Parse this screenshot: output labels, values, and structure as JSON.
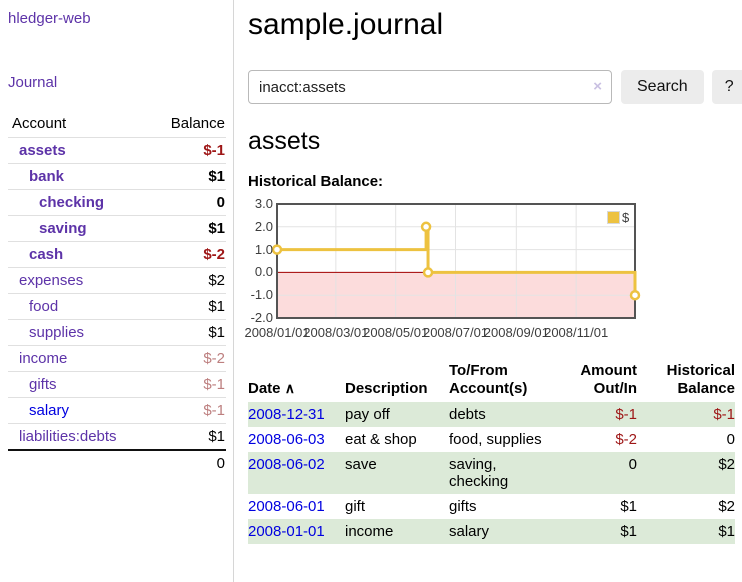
{
  "sidebar": {
    "brand": "hledger-web",
    "nav": {
      "journal": "Journal"
    },
    "table_header": {
      "account": "Account",
      "balance": "Balance"
    },
    "accounts": [
      {
        "name": "assets",
        "balance": "$-1",
        "level": 1,
        "bold": true
      },
      {
        "name": "bank",
        "balance": "$1",
        "level": 2,
        "bold": true
      },
      {
        "name": "checking",
        "balance": "0",
        "level": 3,
        "bold": true
      },
      {
        "name": "saving",
        "balance": "$1",
        "level": 3,
        "bold": true
      },
      {
        "name": "cash",
        "balance": "$-2",
        "level": 2,
        "bold": true
      },
      {
        "name": "expenses",
        "balance": "$2",
        "level": 1,
        "bold": false
      },
      {
        "name": "food",
        "balance": "$1",
        "level": 2,
        "bold": false
      },
      {
        "name": "supplies",
        "balance": "$1",
        "level": 2,
        "bold": false
      },
      {
        "name": "income",
        "balance": "$-2",
        "level": 1,
        "bold": false
      },
      {
        "name": "gifts",
        "balance": "$-1",
        "level": 2,
        "bold": false
      },
      {
        "name": "salary",
        "balance": "$-1",
        "level": 2,
        "bold": false,
        "unvisited": true
      },
      {
        "name": "liabilities:debts",
        "balance": "$1",
        "level": 1,
        "bold": false
      }
    ],
    "total": "0"
  },
  "main": {
    "title": "sample.journal",
    "search": {
      "value": "inacct:assets",
      "clear_icon": "×",
      "search_button": "Search",
      "help_button": "?"
    },
    "account_heading": "assets",
    "chart_title": "Historical Balance:"
  },
  "chart_data": {
    "type": "line",
    "step": true,
    "title": "Historical Balance:",
    "legend": {
      "label": "$",
      "position": "top-right",
      "swatch_color": "#edc240"
    },
    "series": [
      {
        "name": "$",
        "color": "#edc240",
        "points": [
          [
            "2008-01-01",
            1.0
          ],
          [
            "2008-06-01",
            2.0
          ],
          [
            "2008-06-03",
            0.0
          ],
          [
            "2008-12-31",
            -1.0
          ]
        ]
      }
    ],
    "x_range": [
      "2008-01-01",
      "2008-12-31"
    ],
    "ylim": [
      -2.0,
      3.0
    ],
    "x_ticks": [
      "2008/01/01",
      "2008/03/01",
      "2008/05/01",
      "2008/07/01",
      "2008/09/01",
      "2008/11/01"
    ],
    "y_ticks": [
      "3.0",
      "2.0",
      "1.0",
      "0.0",
      "-1.0",
      "-2.0"
    ],
    "grid": true,
    "negative_region_color": "#fcdcdc",
    "zero_line_color": "#a40000",
    "frame_color": "#545454",
    "gridline_color": "#e3e3e3"
  },
  "register": {
    "headers": {
      "date": "Date",
      "sort_icon": "∧",
      "description": "Description",
      "accounts": "To/From Account(s)",
      "amount": "Amount Out/In",
      "balance": "Historical Balance"
    },
    "rows": [
      {
        "date": "2008-12-31",
        "description": "pay off",
        "accounts": "debts",
        "amount": "$-1",
        "balance": "$-1"
      },
      {
        "date": "2008-06-03",
        "description": "eat & shop",
        "accounts": "food, supplies",
        "amount": "$-2",
        "balance": "0"
      },
      {
        "date": "2008-06-02",
        "description": "save",
        "accounts": "saving, checking",
        "amount": "0",
        "balance": "$2"
      },
      {
        "date": "2008-06-01",
        "description": "gift",
        "accounts": "gifts",
        "amount": "$1",
        "balance": "$2"
      },
      {
        "date": "2008-01-01",
        "description": "income",
        "accounts": "salary",
        "amount": "$1",
        "balance": "$1"
      }
    ]
  },
  "colors": {
    "link_purple": "#5d33a8",
    "link_blue": "#0000e0",
    "negative": "#9e1616",
    "negative_dim": "#bd7f7f",
    "row_green": "#dcead8",
    "accent_gold": "#edc240"
  }
}
